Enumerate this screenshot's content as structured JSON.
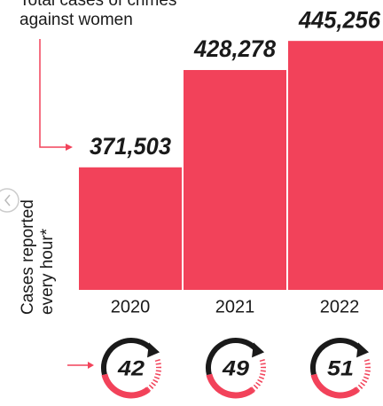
{
  "chart_data": {
    "type": "bar",
    "annotation": [
      "Total cases of crimes",
      "against women"
    ],
    "categories": [
      "2020",
      "2021",
      "2022"
    ],
    "values": [
      371503,
      428278,
      445256
    ],
    "value_labels": [
      "371,503",
      "428,278",
      "445,256"
    ],
    "color": "#f2425a",
    "ylim": [
      300000,
      450000
    ],
    "hourly": {
      "label": [
        "Cases reported",
        "every hour*"
      ],
      "values": [
        42,
        49,
        51
      ]
    }
  }
}
